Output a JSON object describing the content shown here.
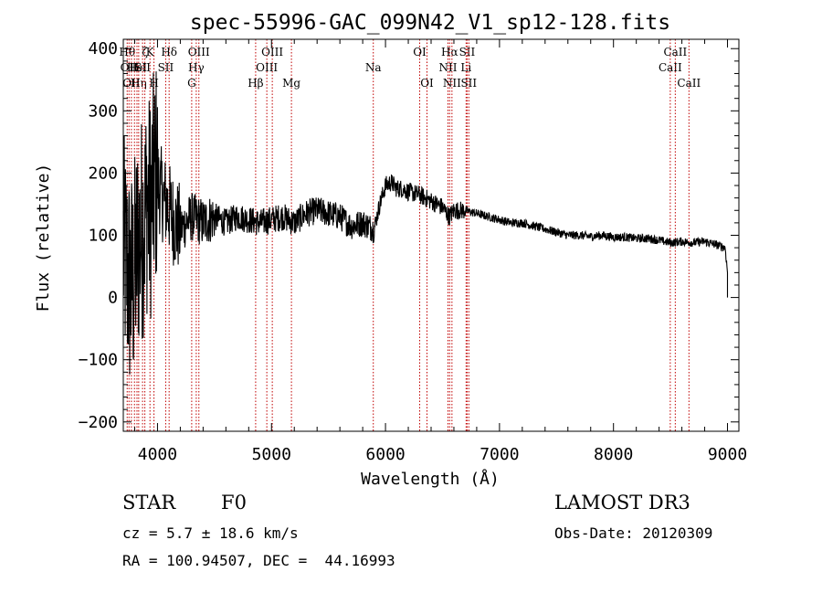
{
  "chart_data": {
    "type": "line",
    "title": "spec-55996-GAC_099N42_V1_sp12-128.fits",
    "xlabel": "Wavelength (Å)",
    "ylabel": "Flux (relative)",
    "xlim": [
      3700,
      9100
    ],
    "ylim": [
      -215,
      415
    ],
    "xticks": [
      4000,
      5000,
      6000,
      7000,
      8000,
      9000
    ],
    "xtick_labels": [
      "4000",
      "5000",
      "6000",
      "7000",
      "8000",
      "9000"
    ],
    "yticks": [
      -200,
      -100,
      0,
      100,
      200,
      300,
      400
    ],
    "ytick_labels": [
      "−200",
      "−100",
      "0",
      "100",
      "200",
      "300",
      "400"
    ],
    "series": [
      {
        "name": "flux",
        "x": [
          3700,
          3730,
          3760,
          3790,
          3810,
          3830,
          3850,
          3870,
          3890,
          3910,
          3930,
          3950,
          3970,
          3990,
          4010,
          4030,
          4050,
          4080,
          4110,
          4150,
          4200,
          4250,
          4300,
          4350,
          4400,
          4450,
          4500,
          4600,
          4700,
          4800,
          4900,
          5000,
          5100,
          5200,
          5300,
          5400,
          5500,
          5600,
          5700,
          5800,
          5850,
          5900,
          5950,
          6000,
          6050,
          6100,
          6150,
          6200,
          6300,
          6400,
          6500,
          6560,
          6600,
          6700,
          6800,
          6900,
          7000,
          7100,
          7200,
          7300,
          7400,
          7500,
          7600,
          7700,
          7800,
          7900,
          8000,
          8100,
          8200,
          8300,
          8400,
          8500,
          8600,
          8700,
          8800,
          8900,
          8980,
          9000
        ],
        "y": [
          80,
          50,
          20,
          30,
          60,
          90,
          100,
          120,
          130,
          160,
          140,
          160,
          180,
          200,
          180,
          170,
          160,
          150,
          140,
          120,
          110,
          120,
          130,
          125,
          120,
          125,
          130,
          120,
          130,
          125,
          120,
          125,
          130,
          120,
          135,
          140,
          135,
          130,
          115,
          120,
          115,
          110,
          150,
          180,
          185,
          175,
          175,
          170,
          165,
          155,
          145,
          130,
          140,
          140,
          135,
          130,
          125,
          120,
          120,
          115,
          110,
          105,
          100,
          100,
          98,
          100,
          97,
          97,
          95,
          95,
          92,
          88,
          90,
          88,
          90,
          85,
          80,
          40
        ]
      }
    ],
    "spectral_lines": [
      {
        "x": 3734,
        "row": 1,
        "label": "Hθ"
      },
      {
        "x": 3750,
        "row": 2,
        "label": "OII"
      },
      {
        "x": 3771,
        "row": 3,
        "label": "OII"
      },
      {
        "x": 3798,
        "row": 2,
        "label": "H"
      },
      {
        "x": 3835,
        "row": 3,
        "label": "Hη"
      },
      {
        "x": 3820,
        "row": 2,
        "label": "HeI"
      },
      {
        "x": 3869,
        "row": 2,
        "label": "SII"
      },
      {
        "x": 3889,
        "row": 1,
        "label": "ζ"
      },
      {
        "x": 3934,
        "row": 1,
        "label": "K"
      },
      {
        "x": 3969,
        "row": 3,
        "label": "H"
      },
      {
        "x": 4102,
        "row": 1,
        "label": "Hδ"
      },
      {
        "x": 4072,
        "row": 2,
        "label": "SII"
      },
      {
        "x": 4300,
        "row": 3,
        "label": "G"
      },
      {
        "x": 4340,
        "row": 2,
        "label": "Hγ"
      },
      {
        "x": 4363,
        "row": 1,
        "label": "OIII"
      },
      {
        "x": 4861,
        "row": 3,
        "label": "Hβ"
      },
      {
        "x": 4959,
        "row": 2,
        "label": "OIII"
      },
      {
        "x": 5007,
        "row": 1,
        "label": "OIII"
      },
      {
        "x": 5175,
        "row": 3,
        "label": "Mg"
      },
      {
        "x": 5893,
        "row": 2,
        "label": "Na"
      },
      {
        "x": 6300,
        "row": 1,
        "label": "OI"
      },
      {
        "x": 6364,
        "row": 3,
        "label": "OI"
      },
      {
        "x": 6548,
        "row": 2,
        "label": "NII"
      },
      {
        "x": 6563,
        "row": 1,
        "label": "Hα"
      },
      {
        "x": 6583,
        "row": 3,
        "label": "NII"
      },
      {
        "x": 6707,
        "row": 2,
        "label": "Li"
      },
      {
        "x": 6716,
        "row": 1,
        "label": "SII"
      },
      {
        "x": 6731,
        "row": 3,
        "label": "SII"
      },
      {
        "x": 8498,
        "row": 2,
        "label": "CaII"
      },
      {
        "x": 8542,
        "row": 1,
        "label": "CaII"
      },
      {
        "x": 8662,
        "row": 3,
        "label": "CaII"
      }
    ]
  },
  "info": {
    "class_label": "STAR",
    "subclass_label": "F0",
    "redshift_text": "cz = 5.7 ± 18.6 km/s",
    "coords_text": "RA = 100.94507, DEC =  44.16993",
    "survey_label": "LAMOST DR3",
    "obs_date_text": "Obs-Date: 20120309"
  }
}
